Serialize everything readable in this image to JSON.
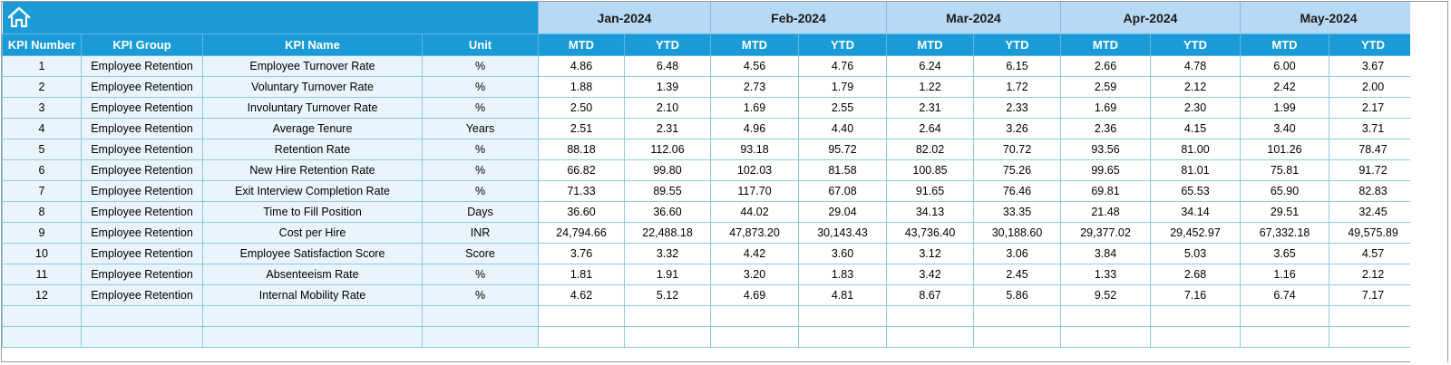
{
  "months": [
    "Jan-2024",
    "Feb-2024",
    "Mar-2024",
    "Apr-2024",
    "May-2024"
  ],
  "home_icon": "home-icon",
  "columns": {
    "kpi_number": "KPI Number",
    "kpi_group": "KPI Group",
    "kpi_name": "KPI Name",
    "unit": "Unit",
    "mtd": "MTD",
    "ytd": "YTD"
  },
  "rows": [
    {
      "num": "1",
      "group": "Employee Retention",
      "name": "Employee Turnover Rate",
      "unit": "%",
      "vals": [
        "4.86",
        "6.48",
        "4.56",
        "4.76",
        "6.24",
        "6.15",
        "2.66",
        "4.78",
        "6.00",
        "3.67"
      ]
    },
    {
      "num": "2",
      "group": "Employee Retention",
      "name": "Voluntary Turnover Rate",
      "unit": "%",
      "vals": [
        "1.88",
        "1.39",
        "2.73",
        "1.79",
        "1.22",
        "1.72",
        "2.59",
        "2.12",
        "2.42",
        "2.00"
      ]
    },
    {
      "num": "3",
      "group": "Employee Retention",
      "name": "Involuntary Turnover Rate",
      "unit": "%",
      "vals": [
        "2.50",
        "2.10",
        "1.69",
        "2.55",
        "2.31",
        "2.33",
        "1.69",
        "2.30",
        "1.99",
        "2.17"
      ]
    },
    {
      "num": "4",
      "group": "Employee Retention",
      "name": "Average Tenure",
      "unit": "Years",
      "vals": [
        "2.51",
        "2.31",
        "4.96",
        "4.40",
        "2.64",
        "3.26",
        "2.36",
        "4.15",
        "3.40",
        "3.71"
      ]
    },
    {
      "num": "5",
      "group": "Employee Retention",
      "name": "Retention Rate",
      "unit": "%",
      "vals": [
        "88.18",
        "112.06",
        "93.18",
        "95.72",
        "82.02",
        "70.72",
        "93.56",
        "81.00",
        "101.26",
        "78.47"
      ]
    },
    {
      "num": "6",
      "group": "Employee Retention",
      "name": "New Hire Retention Rate",
      "unit": "%",
      "vals": [
        "66.82",
        "99.80",
        "102.03",
        "81.58",
        "100.85",
        "75.26",
        "99.65",
        "81.01",
        "75.81",
        "91.72"
      ]
    },
    {
      "num": "7",
      "group": "Employee Retention",
      "name": "Exit Interview Completion Rate",
      "unit": "%",
      "vals": [
        "71.33",
        "89.55",
        "117.70",
        "67.08",
        "91.65",
        "76.46",
        "69.81",
        "65.53",
        "65.90",
        "82.83"
      ]
    },
    {
      "num": "8",
      "group": "Employee Retention",
      "name": "Time to Fill Position",
      "unit": "Days",
      "vals": [
        "36.60",
        "36.60",
        "44.02",
        "29.04",
        "34.13",
        "33.35",
        "21.48",
        "34.14",
        "29.51",
        "32.45"
      ]
    },
    {
      "num": "9",
      "group": "Employee Retention",
      "name": "Cost per Hire",
      "unit": "INR",
      "vals": [
        "24,794.66",
        "22,488.18",
        "47,873.20",
        "30,143.43",
        "43,736.40",
        "30,188.60",
        "29,377.02",
        "29,452.97",
        "67,332.18",
        "49,575.89"
      ]
    },
    {
      "num": "10",
      "group": "Employee Retention",
      "name": "Employee Satisfaction Score",
      "unit": "Score",
      "vals": [
        "3.76",
        "3.32",
        "4.42",
        "3.60",
        "3.12",
        "3.06",
        "3.84",
        "5.03",
        "3.65",
        "4.57"
      ]
    },
    {
      "num": "11",
      "group": "Employee Retention",
      "name": "Absenteeism Rate",
      "unit": "%",
      "vals": [
        "1.81",
        "1.91",
        "3.20",
        "1.83",
        "3.42",
        "2.45",
        "1.33",
        "2.68",
        "1.16",
        "2.12"
      ]
    },
    {
      "num": "12",
      "group": "Employee Retention",
      "name": "Internal Mobility Rate",
      "unit": "%",
      "vals": [
        "4.62",
        "5.12",
        "4.69",
        "4.81",
        "8.67",
        "5.86",
        "9.52",
        "7.16",
        "6.74",
        "7.17"
      ]
    }
  ],
  "empty_rows": 2
}
